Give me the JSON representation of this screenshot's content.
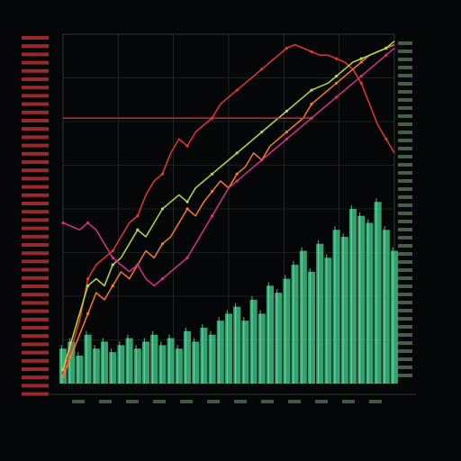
{
  "header": {
    "title": "",
    "left_label": "",
    "right_label": ""
  },
  "legend": {
    "heading": "",
    "items": []
  },
  "colors": {
    "background": "#050607",
    "grid": "#2c3a30",
    "volume": "#3fcf8e",
    "red": "#e53935",
    "orange": "#f57c2a",
    "lime": "#b6d84a",
    "magenta": "#d63384",
    "axis_text_red": "#d93b3b",
    "axis_text_green": "#7fa67f"
  },
  "chart_data": {
    "type": "line",
    "title": "",
    "xlabel": "",
    "ylabel": "",
    "grid": true,
    "x": [
      0,
      1,
      2,
      3,
      4,
      5,
      6,
      7,
      8,
      9,
      10,
      11,
      12,
      13,
      14,
      15,
      16,
      17,
      18,
      19,
      20,
      21,
      22,
      23,
      24,
      25,
      26,
      27,
      28,
      29,
      30,
      31,
      32,
      33,
      34,
      35,
      36,
      37,
      38,
      39,
      40
    ],
    "xlim": [
      0,
      40
    ],
    "ylim": [
      0,
      100
    ],
    "series": [
      {
        "name": "",
        "color": "#e53935",
        "values": [
          3,
          10,
          18,
          30,
          34,
          36,
          38,
          42,
          46,
          48,
          54,
          58,
          60,
          66,
          70,
          68,
          72,
          74,
          76,
          80,
          82,
          84,
          86,
          88,
          90,
          92,
          94,
          96,
          97,
          96,
          95,
          94,
          94,
          93,
          92,
          90,
          86,
          80,
          74,
          70,
          66
        ]
      },
      {
        "name": "",
        "color": "#f57c2a",
        "values": [
          2,
          8,
          14,
          20,
          26,
          24,
          28,
          32,
          30,
          34,
          38,
          36,
          40,
          42,
          46,
          50,
          48,
          52,
          55,
          58,
          56,
          60,
          62,
          66,
          64,
          68,
          70,
          72,
          74,
          76,
          80,
          82,
          84,
          86,
          88,
          90,
          92,
          94,
          95,
          96,
          97
        ]
      },
      {
        "name": "",
        "color": "#b6d84a",
        "values": [
          4,
          12,
          20,
          28,
          30,
          28,
          34,
          36,
          40,
          44,
          42,
          46,
          50,
          52,
          54,
          52,
          56,
          58,
          60,
          62,
          64,
          66,
          68,
          70,
          72,
          74,
          76,
          78,
          80,
          82,
          84,
          85,
          86,
          88,
          90,
          92,
          93,
          94,
          95,
          96,
          98
        ]
      },
      {
        "name": "",
        "color": "#d63384",
        "values": [
          46,
          45,
          44,
          46,
          44,
          40,
          36,
          34,
          32,
          34,
          30,
          28,
          30,
          32,
          34,
          36,
          40,
          44,
          48,
          52,
          56,
          58,
          60,
          62,
          64,
          66,
          68,
          70,
          72,
          74,
          76,
          78,
          80,
          82,
          84,
          86,
          88,
          90,
          92,
          94,
          96
        ]
      }
    ],
    "volume": [
      10,
      12,
      8,
      14,
      10,
      12,
      9,
      11,
      13,
      10,
      12,
      14,
      11,
      13,
      10,
      15,
      12,
      16,
      14,
      18,
      20,
      22,
      18,
      24,
      20,
      28,
      26,
      30,
      34,
      38,
      32,
      40,
      36,
      44,
      42,
      50,
      48,
      46,
      52,
      44,
      38
    ]
  }
}
